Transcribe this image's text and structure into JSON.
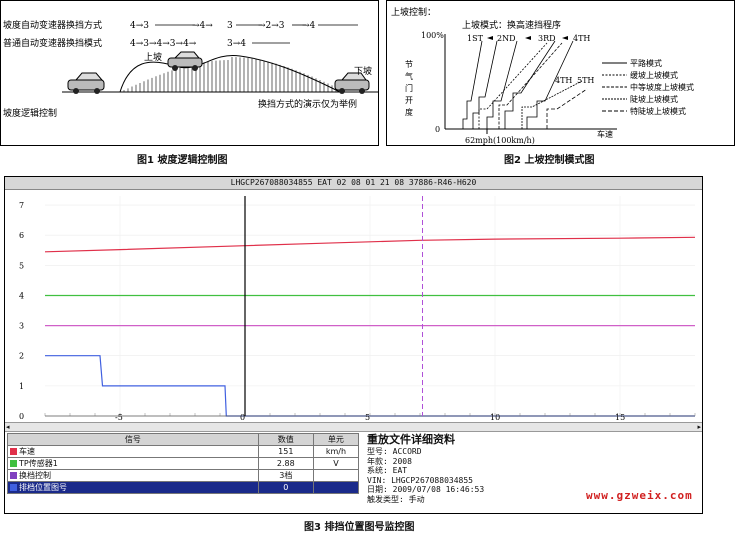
{
  "fig1": {
    "caption": "图1 坡度逻辑控制图",
    "row1_label": "坡度自动变速器换挡方式",
    "row1_seq_a": "4→3",
    "row1_seq_b": "→4→",
    "row1_seq_c": "3",
    "row1_seq_d": "→2→3",
    "row1_seq_e": "→4",
    "row2_label": "普通自动变速器换挡模式",
    "row2_seq_a": "4→3→4→3→4→",
    "row2_seq_b": "3→4",
    "uphill": "上坡",
    "downhill": "下坡",
    "logic": "坡度逻辑控制",
    "note": "换挡方式的演示仅为举例"
  },
  "fig2": {
    "caption": "图2 上坡控制模式图",
    "title": "上坡控制：",
    "subtitle": "上坡模式：换高速挡程序",
    "y_100": "100%",
    "y_0": "0",
    "y_axis_label": [
      "节",
      "气",
      "门",
      "开",
      "度"
    ],
    "gears": [
      "1ST",
      "2ND",
      "3RD",
      "4TH"
    ],
    "gear5": "5TH",
    "gear4b": "4TH",
    "x_label": "62mph(100km/h)",
    "speed_label": "车速",
    "legend": [
      "平路模式",
      "缓坡上坡模式",
      "中等坡度上坡模式",
      "陡坡上坡模式",
      "特陡坡上坡模式"
    ]
  },
  "fig3": {
    "caption": "图3 排挡位置图号监控图",
    "title": "LHGCP267088034855 EAT 02 08 01 21 08 37886-R46-H620",
    "chart_data": {
      "type": "line",
      "x_ticks": [
        -5,
        0,
        5,
        10,
        15
      ],
      "y_ticks": [
        0,
        1,
        2,
        3,
        4,
        5,
        6,
        7
      ],
      "xlim": [
        -8,
        18
      ],
      "ylim": [
        0,
        7.3
      ],
      "cursor_x": 0,
      "marker_x": 7.1,
      "series": [
        {
          "name": "车速",
          "color": "#e0304a",
          "x": [
            -8,
            -5,
            0,
            3,
            5,
            7,
            10,
            15,
            18
          ],
          "y": [
            5.45,
            5.52,
            5.65,
            5.73,
            5.78,
            5.83,
            5.87,
            5.9,
            5.93
          ]
        },
        {
          "name": "TP传感器1",
          "color": "#40c040",
          "x": [
            -8,
            18
          ],
          "y": [
            4,
            4
          ]
        },
        {
          "name": "换档控制",
          "color": "#d060c8",
          "x": [
            -8,
            18
          ],
          "y": [
            3,
            3
          ]
        },
        {
          "name": "排档位置图号",
          "color": "#4060e0",
          "x": [
            -8,
            -5.8,
            -5.7,
            -0.8,
            -0.75,
            18
          ],
          "y": [
            2,
            2,
            1,
            1,
            0,
            0
          ]
        }
      ]
    },
    "table": {
      "headers": [
        "信号",
        "数值",
        "单元"
      ],
      "rows": [
        {
          "name": "车速",
          "value": "151",
          "unit": "km/h",
          "color": "#e0304a"
        },
        {
          "name": "TP传感器1",
          "value": "2.88",
          "unit": "V",
          "color": "#40c040"
        },
        {
          "name": "换档控制",
          "value": "3档",
          "unit": "",
          "color": "#8040c0"
        },
        {
          "name": "排档位置图号",
          "value": "0",
          "unit": "",
          "color": "#4060e0"
        }
      ]
    },
    "file_info": {
      "heading": "重放文件详细资料",
      "lines": [
        "型号: ACCORD",
        "年款: 2008",
        "系统: EAT",
        "VIN: LHGCP267088034855",
        "日期: 2009/07/08 16:46:53",
        "触发类型: 手动"
      ]
    }
  },
  "watermark": "www.gzweix.com"
}
